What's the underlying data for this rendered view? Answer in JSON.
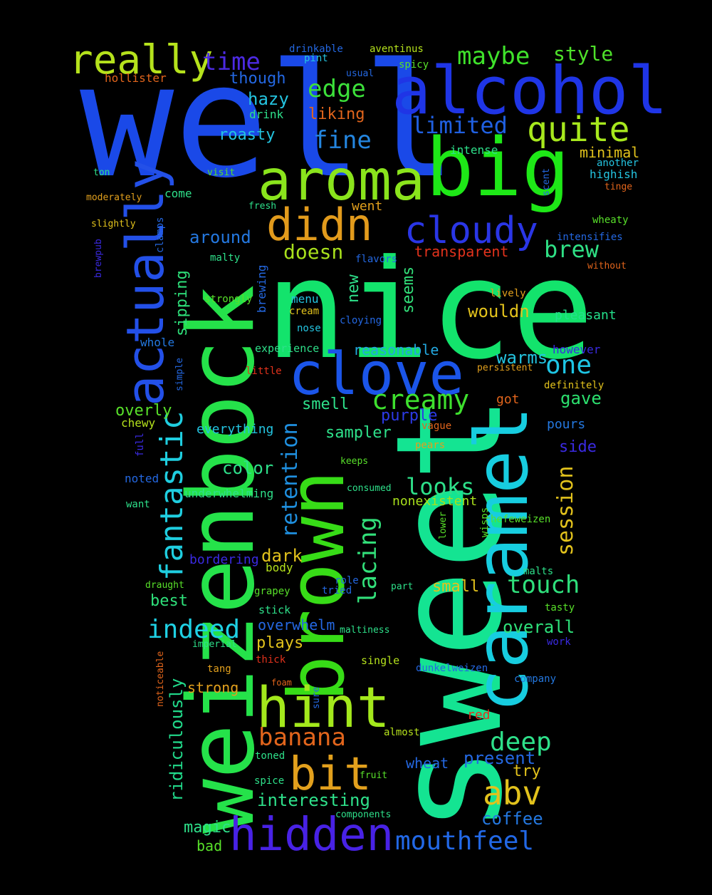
{
  "words": [
    {
      "text": "well",
      "color": "#1a49e8"
    },
    {
      "text": "sweet",
      "color": "#14e492"
    },
    {
      "text": "nice",
      "color": "#13e36c"
    },
    {
      "text": "weizenbock",
      "color": "#25e24a"
    },
    {
      "text": "brown",
      "color": "#37dc17"
    },
    {
      "text": "caramel",
      "color": "#17cde0"
    },
    {
      "text": "big",
      "color": "#1ee817"
    },
    {
      "text": "aroma",
      "color": "#8ae41c"
    },
    {
      "text": "alcohol",
      "color": "#1f35e6"
    },
    {
      "text": "clove",
      "color": "#1b55e9"
    },
    {
      "text": "hint",
      "color": "#a3e81c"
    },
    {
      "text": "actually",
      "color": "#2350e8"
    },
    {
      "text": "hidden",
      "color": "#4822e5"
    },
    {
      "text": "bit",
      "color": "#e2a01d"
    },
    {
      "text": "didn",
      "color": "#e29b1c"
    },
    {
      "text": "cloudy",
      "color": "#2a36e6"
    },
    {
      "text": "really",
      "color": "#b5e21c"
    },
    {
      "text": "quite",
      "color": "#a7e81d"
    },
    {
      "text": "creamy",
      "color": "#3ee02e"
    },
    {
      "text": "abv",
      "color": "#e2c21c"
    },
    {
      "text": "mouthfeel",
      "color": "#2268e6"
    },
    {
      "text": "banana",
      "color": "#e2651c"
    },
    {
      "text": "deep",
      "color": "#2ee08a"
    },
    {
      "text": "one",
      "color": "#1ec5e4"
    },
    {
      "text": "fantastic",
      "color": "#1fcee0"
    },
    {
      "text": "indeed",
      "color": "#1fd1e4"
    },
    {
      "text": "touch",
      "color": "#2fe07c"
    },
    {
      "text": "time",
      "color": "#4c2ae2"
    },
    {
      "text": "maybe",
      "color": "#3fe22b"
    },
    {
      "text": "edge",
      "color": "#3ce03a"
    },
    {
      "text": "fine",
      "color": "#2486e0"
    },
    {
      "text": "limited",
      "color": "#2060e2"
    },
    {
      "text": "brew",
      "color": "#2fe085"
    },
    {
      "text": "looks",
      "color": "#2ee08a"
    },
    {
      "text": "style",
      "color": "#4ee02a"
    },
    {
      "text": "doesn",
      "color": "#a8e01c"
    },
    {
      "text": "lacing",
      "color": "#32e07a"
    },
    {
      "text": "retention",
      "color": "#1f90e0"
    },
    {
      "text": "session",
      "color": "#e2c21c"
    },
    {
      "text": "ridiculously",
      "color": "#21d98a"
    },
    {
      "text": "interesting",
      "color": "#2ee08a"
    },
    {
      "text": "present",
      "color": "#2468e2"
    },
    {
      "text": "coffee",
      "color": "#2478e0"
    },
    {
      "text": "reasonable",
      "color": "#23a8e0"
    },
    {
      "text": "warms",
      "color": "#24c4e0"
    },
    {
      "text": "gave",
      "color": "#2ce06e"
    },
    {
      "text": "overall",
      "color": "#2ee07a"
    },
    {
      "text": "wouldn",
      "color": "#e2c21c"
    },
    {
      "text": "pleasant",
      "color": "#24e08c"
    },
    {
      "text": "sipping",
      "color": "#2ee07a"
    },
    {
      "text": "overly",
      "color": "#58e02a"
    },
    {
      "text": "color",
      "color": "#2ee08a"
    },
    {
      "text": "smell",
      "color": "#2ee08a"
    },
    {
      "text": "sampler",
      "color": "#2ee08a"
    },
    {
      "text": "around",
      "color": "#2478e0"
    },
    {
      "text": "roasty",
      "color": "#24c4e0"
    },
    {
      "text": "hazy",
      "color": "#24c4e0"
    },
    {
      "text": "though",
      "color": "#2468e2"
    },
    {
      "text": "liking",
      "color": "#e2651c"
    },
    {
      "text": "transparent",
      "color": "#e2321c"
    },
    {
      "text": "new",
      "color": "#2ee08a"
    },
    {
      "text": "seems",
      "color": "#32e07a"
    },
    {
      "text": "dark",
      "color": "#e2c21c"
    },
    {
      "text": "small",
      "color": "#e2c21c"
    },
    {
      "text": "best",
      "color": "#2ee07a"
    },
    {
      "text": "plays",
      "color": "#e2c21c"
    },
    {
      "text": "strong",
      "color": "#e2a01d"
    },
    {
      "text": "magic",
      "color": "#2ee08a"
    },
    {
      "text": "bad",
      "color": "#58e02a"
    },
    {
      "text": "try",
      "color": "#e2c21c"
    },
    {
      "text": "wheat",
      "color": "#2468e2"
    },
    {
      "text": "purple",
      "color": "#2c3ae6"
    },
    {
      "text": "everything",
      "color": "#24c4e0"
    },
    {
      "text": "overwhelm",
      "color": "#2468e2"
    },
    {
      "text": "side",
      "color": "#3a2ae2"
    },
    {
      "text": "pours",
      "color": "#2478e0"
    },
    {
      "text": "minimal",
      "color": "#e2c21c"
    },
    {
      "text": "intense",
      "color": "#2ee08a"
    },
    {
      "text": "highish",
      "color": "#24c4e0"
    },
    {
      "text": "nonexistent",
      "color": "#a8e01c"
    },
    {
      "text": "bordering",
      "color": "#3a2ae2"
    },
    {
      "text": "underwhelming",
      "color": "#2ee08a"
    },
    {
      "text": "went",
      "color": "#e2a01d"
    },
    {
      "text": "drink",
      "color": "#2ee08a"
    },
    {
      "text": "come",
      "color": "#2ee08a"
    },
    {
      "text": "spicy",
      "color": "#58e02a"
    },
    {
      "text": "aventinus",
      "color": "#b5e21c"
    },
    {
      "text": "drinkable",
      "color": "#2468e2"
    },
    {
      "text": "pint",
      "color": "#24c4e0"
    },
    {
      "text": "usual",
      "color": "#2468e2"
    },
    {
      "text": "hollister",
      "color": "#e2651c"
    },
    {
      "text": "ton",
      "color": "#2ee08a"
    },
    {
      "text": "visit",
      "color": "#58e02a"
    },
    {
      "text": "moderately",
      "color": "#e2a01d"
    },
    {
      "text": "slightly",
      "color": "#e2c21c"
    },
    {
      "text": "clamps",
      "color": "#2468e2"
    },
    {
      "text": "fresh",
      "color": "#2ee08a"
    },
    {
      "text": "malty",
      "color": "#2ee08a"
    },
    {
      "text": "brewing",
      "color": "#2468e2"
    },
    {
      "text": "strongly",
      "color": "#58e02a"
    },
    {
      "text": "brewpub",
      "color": "#3a2ae2"
    },
    {
      "text": "menu",
      "color": "#24c4e0"
    },
    {
      "text": "cream",
      "color": "#e2c21c"
    },
    {
      "text": "nose",
      "color": "#24c4e0"
    },
    {
      "text": "cloying",
      "color": "#2468e2"
    },
    {
      "text": "flavors",
      "color": "#2468e2"
    },
    {
      "text": "whole",
      "color": "#2478e0"
    },
    {
      "text": "experience",
      "color": "#2ee08a"
    },
    {
      "text": "simple",
      "color": "#2468e2"
    },
    {
      "text": "little",
      "color": "#e2321c"
    },
    {
      "text": "persistent",
      "color": "#e2a01d"
    },
    {
      "text": "definitely",
      "color": "#e2c21c"
    },
    {
      "text": "however",
      "color": "#3a2ae2"
    },
    {
      "text": "lively",
      "color": "#e2a01d"
    },
    {
      "text": "without",
      "color": "#e2651c"
    },
    {
      "text": "intensifies",
      "color": "#2468e2"
    },
    {
      "text": "wheaty",
      "color": "#58e02a"
    },
    {
      "text": "tinge",
      "color": "#e2651c"
    },
    {
      "text": "another",
      "color": "#24c4e0"
    },
    {
      "text": "scent",
      "color": "#2468e2"
    },
    {
      "text": "chewy",
      "color": "#b5e21c"
    },
    {
      "text": "full",
      "color": "#3a2ae2"
    },
    {
      "text": "noted",
      "color": "#2468e2"
    },
    {
      "text": "want",
      "color": "#2ee08a"
    },
    {
      "text": "draught",
      "color": "#58e02a"
    },
    {
      "text": "grapey",
      "color": "#58e02a"
    },
    {
      "text": "stick",
      "color": "#2ee08a"
    },
    {
      "text": "imperial",
      "color": "#2ee08a"
    },
    {
      "text": "thick",
      "color": "#e2321c"
    },
    {
      "text": "tang",
      "color": "#e2a01d"
    },
    {
      "text": "noticeable",
      "color": "#e2651c"
    },
    {
      "text": "foam",
      "color": "#e2651c"
    },
    {
      "text": "sure",
      "color": "#2468e2"
    },
    {
      "text": "toned",
      "color": "#2ee08a"
    },
    {
      "text": "spice",
      "color": "#2ee08a"
    },
    {
      "text": "fruit",
      "color": "#58e02a"
    },
    {
      "text": "components",
      "color": "#2ee08a"
    },
    {
      "text": "body",
      "color": "#b5e21c"
    },
    {
      "text": "role",
      "color": "#2468e2"
    },
    {
      "text": "tried",
      "color": "#2468e2"
    },
    {
      "text": "maltiness",
      "color": "#2ee08a"
    },
    {
      "text": "part",
      "color": "#2ee08a"
    },
    {
      "text": "single",
      "color": "#b5e21c"
    },
    {
      "text": "almost",
      "color": "#b5e21c"
    },
    {
      "text": "red",
      "color": "#e2321c"
    },
    {
      "text": "dunkelweizen",
      "color": "#2468e2"
    },
    {
      "text": "company",
      "color": "#2478e0"
    },
    {
      "text": "work",
      "color": "#3a2ae2"
    },
    {
      "text": "tasty",
      "color": "#58e02a"
    },
    {
      "text": "malts",
      "color": "#2ee08a"
    },
    {
      "text": "hefeweizen",
      "color": "#58e02a"
    },
    {
      "text": "wisps",
      "color": "#58e02a"
    },
    {
      "text": "lower",
      "color": "#58e02a"
    },
    {
      "text": "consumed",
      "color": "#2ee08a"
    },
    {
      "text": "keeps",
      "color": "#58e02a"
    },
    {
      "text": "pears",
      "color": "#e2a01d"
    },
    {
      "text": "vague",
      "color": "#e2651c"
    },
    {
      "text": "got",
      "color": "#e2651c"
    }
  ]
}
